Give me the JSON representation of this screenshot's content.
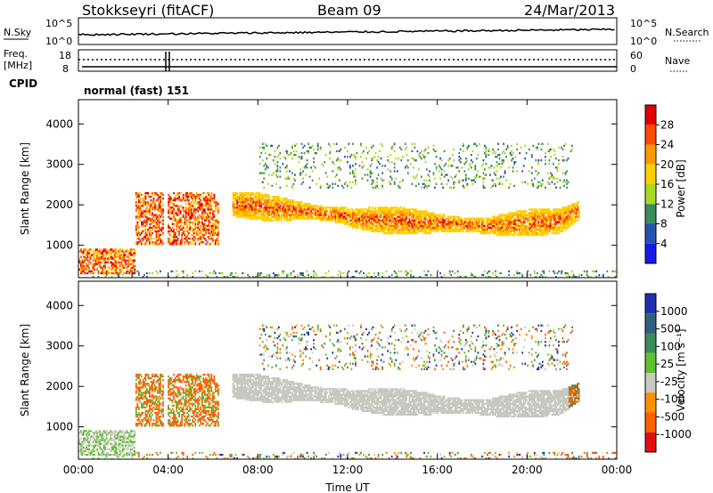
{
  "header": {
    "station": "Stokkseyri (fitACF)",
    "beam": "Beam 09",
    "date": "24/Mar/2013"
  },
  "strips": {
    "nsky_label": "N.Sky",
    "nsky_ticks": [
      "10^5",
      "10^0"
    ],
    "nsearch_label": "N.Search",
    "nsearch_ticks": [
      "10^5",
      "10^0"
    ],
    "freq_label_1": "Freq.",
    "freq_label_2": "[MHz]",
    "freq_ticks": [
      "18",
      "8"
    ],
    "nave_label": "Nave",
    "nave_ticks": [
      "60",
      "0"
    ],
    "cpid_label": "CPID",
    "cpid_text": "normal (fast) 151"
  },
  "chart_data": [
    {
      "type": "heatmap",
      "name": "power",
      "ylabel": "Slant Range [km]",
      "yticks": [
        "4000",
        "3000",
        "2000",
        "1000"
      ],
      "ylim": [
        200,
        4600
      ],
      "xlim": [
        0,
        24
      ],
      "colorbar_label": "Power [dB]",
      "colorbar_ticks": [
        "28",
        "24",
        "20",
        "16",
        "12",
        "8",
        "4"
      ],
      "colorbar_colors": [
        "#e00000",
        "#ff4a00",
        "#ff9a00",
        "#ffd000",
        "#a8d820",
        "#3c8c5a",
        "#2850b0",
        "#1818e8"
      ]
    },
    {
      "type": "heatmap",
      "name": "velocity",
      "ylabel": "Slant Range [km]",
      "yticks": [
        "4000",
        "3000",
        "2000",
        "1000"
      ],
      "ylim": [
        200,
        4600
      ],
      "xlim": [
        0,
        24
      ],
      "xlabel": "Time UT",
      "xticks": [
        "00:00",
        "04:00",
        "08:00",
        "12:00",
        "16:00",
        "20:00",
        "00:00"
      ],
      "colorbar_label": "Velocity [m s⁻¹]",
      "colorbar_ticks": [
        "1000",
        "500",
        "100",
        "25",
        "-25",
        "-100",
        "-500",
        "-1000"
      ],
      "colorbar_colors": [
        "#2030b0",
        "#306080",
        "#3c8c5a",
        "#60c030",
        "#c8c8c0",
        "#ff9000",
        "#ff6000",
        "#e01010"
      ]
    }
  ]
}
